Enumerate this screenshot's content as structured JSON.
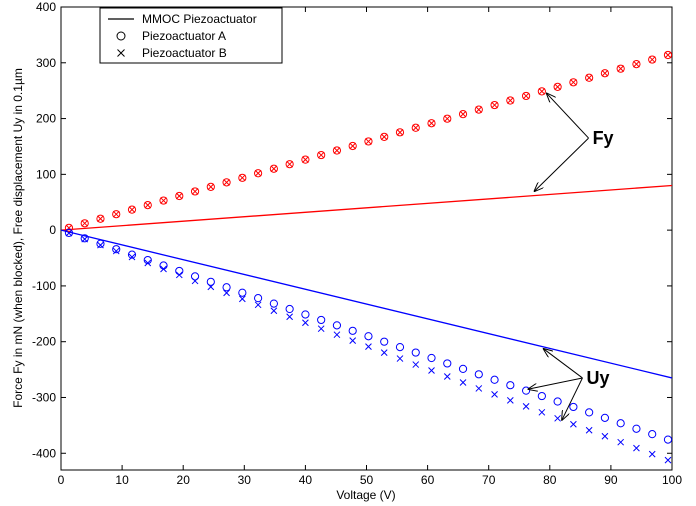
{
  "chart_data": {
    "type": "line",
    "xlabel": "Voltage (V)",
    "ylabel": "Force Fy in mN (when blocked), Free displacement Uy in 0.1µm",
    "xlim": [
      0,
      100
    ],
    "ylim": [
      -430,
      400
    ],
    "x_ticks": [
      0,
      10,
      20,
      30,
      40,
      50,
      60,
      70,
      80,
      90,
      100
    ],
    "y_ticks": [
      -400,
      -300,
      -200,
      -100,
      0,
      100,
      200,
      300,
      400
    ],
    "x_tick_labels": [
      "0",
      "10",
      "20",
      "30",
      "40",
      "50",
      "60",
      "70",
      "80",
      "90",
      "100"
    ],
    "y_tick_labels": [
      "-400",
      "-300",
      "-200",
      "-100",
      "0",
      "100",
      "200",
      "300",
      "400"
    ],
    "grid": false,
    "legend": {
      "position": "top-left",
      "entries": [
        {
          "label": "MMOC Piezoactuator",
          "marker": "line"
        },
        {
          "label": "Piezoactuator A",
          "marker": "circle"
        },
        {
          "label": "Piezoactuator B",
          "marker": "cross"
        }
      ]
    },
    "series": [
      {
        "name": "MMOC Piezoactuator",
        "quantity": "Fy",
        "style": "line",
        "color": "#ff0000",
        "x": [
          0,
          100
        ],
        "y": [
          0,
          80
        ]
      },
      {
        "name": "MMOC Piezoactuator",
        "quantity": "Uy",
        "style": "line",
        "color": "#0000ff",
        "x": [
          0,
          100
        ],
        "y": [
          0,
          -265
        ]
      },
      {
        "name": "Piezoactuator A",
        "quantity": "Fy",
        "style": "circle",
        "color": "#ff0000",
        "x_start": 1.3,
        "x_step": 2.58,
        "count": 39,
        "slope": 3.16,
        "intercept": 0
      },
      {
        "name": "Piezoactuator B",
        "quantity": "Fy",
        "style": "cross",
        "color": "#ff0000",
        "x_start": 1.3,
        "x_step": 2.58,
        "count": 39,
        "slope": 3.16,
        "intercept": 0
      },
      {
        "name": "Piezoactuator A",
        "quantity": "Uy",
        "style": "circle",
        "color": "#0000ff",
        "x_start": 1.3,
        "x_step": 2.58,
        "count": 39,
        "slope": -3.78,
        "intercept": 0
      },
      {
        "name": "Piezoactuator B",
        "quantity": "Uy",
        "style": "cross",
        "color": "#0000ff",
        "x_start": 1.3,
        "x_step": 2.58,
        "count": 39,
        "slope": -4.15,
        "intercept": 0
      }
    ],
    "annotations": [
      {
        "text": "Fy",
        "x": 87,
        "y": 165,
        "arrows_to": [
          {
            "x": 79.5,
            "y": 245
          },
          {
            "x": 77.5,
            "y": 70
          }
        ]
      },
      {
        "text": "Uy",
        "x": 86,
        "y": -265,
        "arrows_to": [
          {
            "x": 79,
            "y": -213
          },
          {
            "x": 76.5,
            "y": -285
          },
          {
            "x": 82,
            "y": -340
          }
        ]
      }
    ]
  }
}
